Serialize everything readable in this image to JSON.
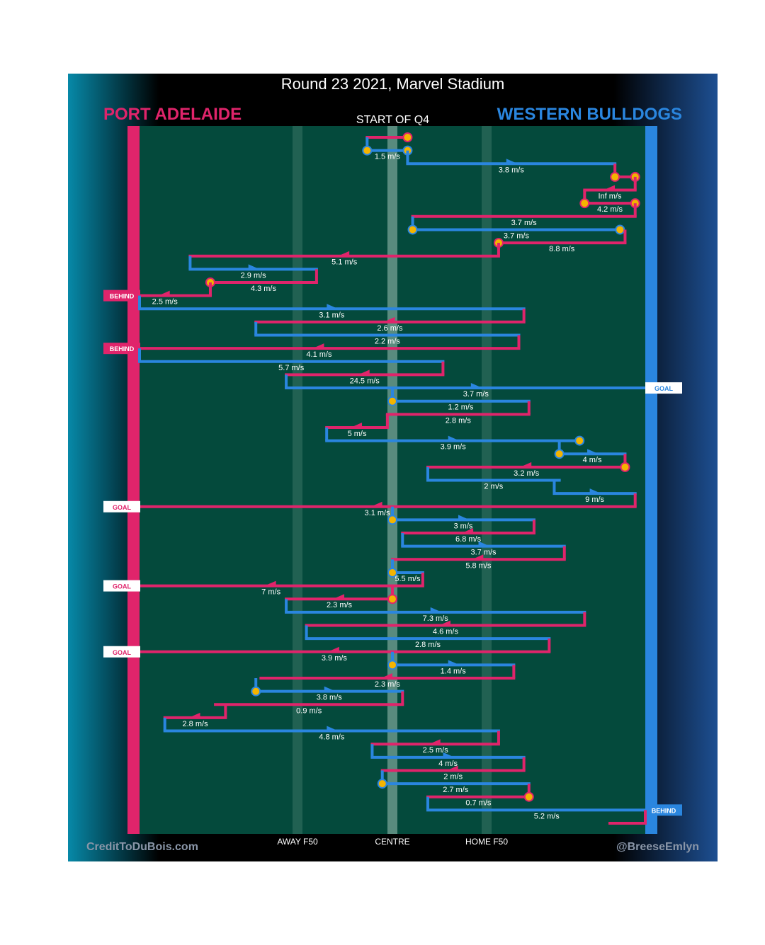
{
  "title": "Round 23 2021, Marvel Stadium",
  "teams": {
    "left": "PORT ADELAIDE",
    "right": "WESTERN BULLDOGS"
  },
  "period_label": "START OF Q4",
  "axis_labels": {
    "away_f50": "AWAY F50",
    "centre": "CENTRE",
    "home_f50": "HOME F50"
  },
  "credits": {
    "left": "CreditToDuBois.com",
    "right": "@BreeseEmlyn"
  },
  "colors": {
    "port_adelaide": "#e0246b",
    "western_bulldogs": "#2a86df",
    "field": "#044a3c",
    "marker": "#f4b400"
  },
  "chart_data": {
    "type": "line",
    "x_axis": {
      "ticks": [
        "AWAY F50",
        "CENTRE",
        "HOME F50"
      ]
    },
    "chains": [
      {
        "team": "port_adelaide",
        "x_start": 0.53,
        "x_end": 0.45,
        "speed": "",
        "arrow": false,
        "marker_start": true
      },
      {
        "team": "western_bulldogs",
        "x_start": 0.45,
        "x_end": 0.53,
        "speed": "1.5 m/s",
        "arrow": false,
        "marker_start": true,
        "marker_end": true
      },
      {
        "team": "western_bulldogs",
        "x_start": 0.53,
        "x_end": 0.94,
        "speed": "3.8 m/s",
        "arrow": true
      },
      {
        "team": "port_adelaide",
        "x_start": 0.94,
        "x_end": 0.98,
        "speed": "",
        "arrow": false,
        "marker_start": true,
        "marker_end": true
      },
      {
        "team": "port_adelaide",
        "x_start": 0.98,
        "x_end": 0.88,
        "speed": "Inf m/s",
        "arrow": true
      },
      {
        "team": "port_adelaide",
        "x_start": 0.88,
        "x_end": 0.98,
        "speed": "4.2 m/s",
        "arrow": false,
        "marker_start": true,
        "marker_end": true
      },
      {
        "team": "port_adelaide",
        "x_start": 0.98,
        "x_end": 0.54,
        "speed": "3.7 m/s",
        "arrow": false
      },
      {
        "team": "western_bulldogs",
        "x_start": 0.54,
        "x_end": 0.95,
        "speed": "3.7 m/s",
        "arrow": false,
        "marker_start": true,
        "marker_end": true
      },
      {
        "team": "port_adelaide",
        "x_start": 0.96,
        "x_end": 0.71,
        "speed": "8.8 m/s",
        "arrow": false,
        "marker_end": true
      },
      {
        "team": "port_adelaide",
        "x_start": 0.71,
        "x_end": 0.1,
        "speed": "5.1 m/s",
        "arrow": true
      },
      {
        "team": "western_bulldogs",
        "x_start": 0.1,
        "x_end": 0.35,
        "speed": "2.9 m/s",
        "arrow": true
      },
      {
        "team": "port_adelaide",
        "x_start": 0.35,
        "x_end": 0.14,
        "speed": "4.3 m/s",
        "arrow": false,
        "marker_end": true
      },
      {
        "team": "port_adelaide",
        "x_start": 0.14,
        "x_end": -0.04,
        "speed": "2.5 m/s",
        "arrow": true,
        "result": "BEHIND"
      },
      {
        "team": "western_bulldogs",
        "x_start": 0.0,
        "x_end": 0.76,
        "speed": "3.1 m/s",
        "arrow": true
      },
      {
        "team": "port_adelaide",
        "x_start": 0.76,
        "x_end": 0.23,
        "speed": "2.6 m/s",
        "arrow": true
      },
      {
        "team": "western_bulldogs",
        "x_start": 0.23,
        "x_end": 0.75,
        "speed": "2.2 m/s",
        "arrow": false
      },
      {
        "team": "port_adelaide",
        "x_start": 0.75,
        "x_end": -0.04,
        "speed": "4.1 m/s",
        "arrow": true,
        "result": "BEHIND"
      },
      {
        "team": "western_bulldogs",
        "x_start": 0.0,
        "x_end": 0.6,
        "speed": "5.7 m/s",
        "arrow": false
      },
      {
        "team": "port_adelaide",
        "x_start": 0.6,
        "x_end": 0.29,
        "speed": "24.5 m/s",
        "arrow": true
      },
      {
        "team": "western_bulldogs",
        "x_start": 0.29,
        "x_end": 1.04,
        "speed": "3.7 m/s",
        "arrow": true,
        "result": "GOAL"
      },
      {
        "team": "western_bulldogs",
        "x_start": 0.5,
        "x_end": 0.77,
        "speed": "1.2 m/s",
        "arrow": false,
        "marker_start": true
      },
      {
        "team": "port_adelaide",
        "x_start": 0.77,
        "x_end": 0.49,
        "speed": "2.8 m/s",
        "arrow": false
      },
      {
        "team": "port_adelaide",
        "x_start": 0.49,
        "x_end": 0.37,
        "speed": "5 m/s",
        "arrow": true
      },
      {
        "team": "western_bulldogs",
        "x_start": 0.37,
        "x_end": 0.87,
        "speed": "3.9 m/s",
        "arrow": true,
        "marker_end": true
      },
      {
        "team": "western_bulldogs",
        "x_start": 0.83,
        "x_end": 0.96,
        "speed": "4 m/s",
        "arrow": true,
        "marker_start": true
      },
      {
        "team": "port_adelaide",
        "x_start": 0.96,
        "x_end": 0.57,
        "speed": "3.2 m/s",
        "arrow": true,
        "marker_start": true
      },
      {
        "team": "western_bulldogs",
        "x_start": 0.57,
        "x_end": 0.83,
        "speed": "2 m/s",
        "arrow": false
      },
      {
        "team": "western_bulldogs",
        "x_start": 0.82,
        "x_end": 0.98,
        "speed": "9 m/s",
        "arrow": true
      },
      {
        "team": "port_adelaide",
        "x_start": 0.98,
        "x_end": -0.04,
        "speed": "3.1 m/s",
        "arrow": true,
        "result": "GOAL"
      },
      {
        "team": "western_bulldogs",
        "x_start": 0.5,
        "x_end": 0.78,
        "speed": "3 m/s",
        "arrow": true,
        "marker_start": true
      },
      {
        "team": "port_adelaide",
        "x_start": 0.78,
        "x_end": 0.52,
        "speed": "6.8 m/s",
        "arrow": true
      },
      {
        "team": "western_bulldogs",
        "x_start": 0.52,
        "x_end": 0.84,
        "speed": "3.7 m/s",
        "arrow": true
      },
      {
        "team": "port_adelaide",
        "x_start": 0.84,
        "x_end": 0.5,
        "speed": "5.8 m/s",
        "arrow": true
      },
      {
        "team": "western_bulldogs",
        "x_start": 0.5,
        "x_end": 0.56,
        "speed": "5.5 m/s",
        "arrow": false,
        "marker_start": true
      },
      {
        "team": "port_adelaide",
        "x_start": 0.56,
        "x_end": -0.04,
        "speed": "7 m/s",
        "arrow": true,
        "result": "GOAL"
      },
      {
        "team": "port_adelaide",
        "x_start": 0.5,
        "x_end": 0.29,
        "speed": "2.3 m/s",
        "arrow": true,
        "marker_start": true
      },
      {
        "team": "western_bulldogs",
        "x_start": 0.29,
        "x_end": 0.88,
        "speed": "7.3 m/s",
        "arrow": true
      },
      {
        "team": "port_adelaide",
        "x_start": 0.88,
        "x_end": 0.33,
        "speed": "4.6 m/s",
        "arrow": true
      },
      {
        "team": "western_bulldogs",
        "x_start": 0.33,
        "x_end": 0.81,
        "speed": "2.8 m/s",
        "arrow": false
      },
      {
        "team": "port_adelaide",
        "x_start": 0.81,
        "x_end": -0.04,
        "speed": "3.9 m/s",
        "arrow": true,
        "result": "GOAL"
      },
      {
        "team": "western_bulldogs",
        "x_start": 0.5,
        "x_end": 0.74,
        "speed": "1.4 m/s",
        "arrow": true,
        "marker_start": true
      },
      {
        "team": "port_adelaide",
        "x_start": 0.74,
        "x_end": 0.24,
        "speed": "2.3 m/s",
        "arrow": true
      },
      {
        "team": "western_bulldogs",
        "x_start": 0.23,
        "x_end": 0.52,
        "speed": "3.8 m/s",
        "arrow": true,
        "marker_start": true
      },
      {
        "team": "port_adelaide",
        "x_start": 0.52,
        "x_end": 0.15,
        "speed": "0.9 m/s",
        "arrow": false
      },
      {
        "team": "port_adelaide",
        "x_start": 0.17,
        "x_end": 0.05,
        "speed": "2.8 m/s",
        "arrow": true
      },
      {
        "team": "western_bulldogs",
        "x_start": 0.05,
        "x_end": 0.71,
        "speed": "4.8 m/s",
        "arrow": true
      },
      {
        "team": "port_adelaide",
        "x_start": 0.71,
        "x_end": 0.46,
        "speed": "2.5 m/s",
        "arrow": true
      },
      {
        "team": "western_bulldogs",
        "x_start": 0.46,
        "x_end": 0.76,
        "speed": "4 m/s",
        "arrow": true
      },
      {
        "team": "port_adelaide",
        "x_start": 0.76,
        "x_end": 0.48,
        "speed": "2 m/s",
        "arrow": true
      },
      {
        "team": "western_bulldogs",
        "x_start": 0.48,
        "x_end": 0.77,
        "speed": "2.7 m/s",
        "arrow": false,
        "marker_start": true
      },
      {
        "team": "port_adelaide",
        "x_start": 0.77,
        "x_end": 0.57,
        "speed": "0.7 m/s",
        "arrow": false,
        "marker_start": true
      },
      {
        "team": "western_bulldogs",
        "x_start": 0.57,
        "x_end": 1.04,
        "speed": "5.2 m/s",
        "arrow": false,
        "result": "BEHIND"
      },
      {
        "team": "port_adelaide",
        "x_start": 1.0,
        "x_end": 0.93,
        "speed": "",
        "arrow": false
      }
    ]
  }
}
